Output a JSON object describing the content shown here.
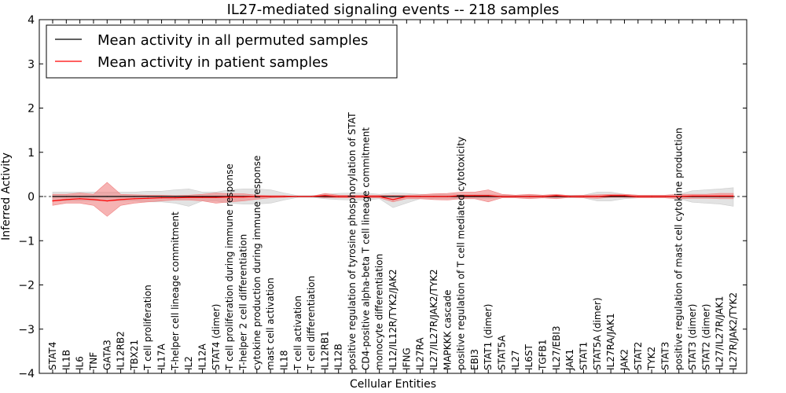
{
  "chart_data": {
    "type": "line",
    "title": "IL27-mediated signaling events -- 218 samples",
    "xlabel": "Cellular Entities",
    "ylabel": "Inferred Activity",
    "ylim": [
      -4,
      4
    ],
    "yticks": [
      "4",
      "3",
      "2",
      "1",
      "0",
      "−1",
      "−2",
      "−3",
      "−4"
    ],
    "ytick_values": [
      4,
      3,
      2,
      1,
      0,
      -1,
      -2,
      -3,
      -4
    ],
    "legend_position": "top-left",
    "categories": [
      "STAT4",
      "IL1B",
      "IL6",
      "TNF",
      "GATA3",
      "IL12RB2",
      "TBX21",
      "T cell proliferation",
      "IL17A",
      "T-helper cell lineage commitment",
      "IL2",
      "IL12A",
      "STAT4 (dimer)",
      "T cell proliferation during immune response",
      "T-helper 2 cell differentiation",
      "cytokine production during immune response",
      "mast cell activation",
      "IL18",
      "T cell activation",
      "T cell differentiation",
      "IL12RB1",
      "IL12B",
      "positive regulation of tyrosine phosphorylation of STAT",
      "CD4-positive alpha-beta T cell lineage commitment",
      "monocyte differentiation",
      "IL12/IL12R/TYK2/JAK2",
      "IFNG",
      "IL27RA",
      "IL27/IL27R/JAK2/TYK2",
      "MAPKKK cascade",
      "positive regulation of T cell mediated cytotoxicity",
      "EBI3",
      "STAT1 (dimer)",
      "STAT5A",
      "IL27",
      "IL6ST",
      "TGFB1",
      "IL27/EBI3",
      "JAK1",
      "STAT1",
      "STAT5A (dimer)",
      "IL27RA/JAK1",
      "JAK2",
      "STAT2",
      "TYK2",
      "STAT3",
      "positive regulation of mast cell cytokine production",
      "STAT3 (dimer)",
      "STAT2 (dimer)",
      "IL27/IL27R/JAK1",
      "IL27R/JAK2/TYK2"
    ],
    "series": [
      {
        "name": "Mean activity in all permuted samples",
        "color": "#000000",
        "band_color": "#cccccc",
        "values": [
          0,
          0,
          0,
          0,
          0,
          0,
          0,
          0,
          0,
          0,
          0,
          0,
          0,
          0,
          0,
          0,
          0,
          0,
          0,
          0,
          0,
          0,
          0,
          0,
          0,
          0,
          0,
          0,
          0,
          0,
          0,
          0,
          0,
          0,
          0,
          0,
          0,
          0,
          0,
          0,
          0,
          0,
          0,
          0,
          0,
          0,
          0,
          0,
          0,
          0,
          0
        ],
        "upper": [
          0.1,
          0.1,
          0.1,
          0.1,
          0.1,
          0.1,
          0.1,
          0.12,
          0.12,
          0.15,
          0.17,
          0.1,
          0.1,
          0.15,
          0.17,
          0.17,
          0.15,
          0.08,
          0.02,
          0.02,
          0.05,
          0.07,
          0.08,
          0.08,
          0.05,
          0.08,
          0.07,
          0.05,
          0.05,
          0.05,
          0.05,
          0.05,
          0.05,
          0.03,
          0.03,
          0.03,
          0.03,
          0.03,
          0.03,
          0.03,
          0.1,
          0.1,
          0.05,
          0.03,
          0.03,
          0.03,
          0.05,
          0.13,
          0.15,
          0.17,
          0.2
        ],
        "lower": [
          -0.1,
          -0.1,
          -0.1,
          -0.1,
          -0.1,
          -0.1,
          -0.1,
          -0.12,
          -0.12,
          -0.15,
          -0.22,
          -0.1,
          -0.1,
          -0.15,
          -0.17,
          -0.17,
          -0.15,
          -0.08,
          -0.02,
          -0.02,
          -0.05,
          -0.07,
          -0.08,
          -0.08,
          -0.05,
          -0.25,
          -0.15,
          -0.05,
          -0.05,
          -0.05,
          -0.05,
          -0.05,
          -0.05,
          -0.03,
          -0.03,
          -0.03,
          -0.03,
          -0.03,
          -0.03,
          -0.03,
          -0.1,
          -0.1,
          -0.05,
          -0.03,
          -0.03,
          -0.03,
          -0.05,
          -0.13,
          -0.15,
          -0.17,
          -0.22
        ]
      },
      {
        "name": "Mean activity in patient samples",
        "color": "#ff0000",
        "band_color": "#f08080",
        "values": [
          -0.1,
          -0.07,
          -0.05,
          -0.07,
          -0.1,
          -0.07,
          -0.05,
          -0.04,
          -0.03,
          -0.03,
          -0.02,
          -0.02,
          -0.02,
          -0.01,
          -0.01,
          0,
          0,
          0,
          0,
          0,
          0.02,
          0,
          0,
          0,
          0,
          -0.07,
          0,
          0,
          0,
          0,
          0.02,
          0.02,
          0.02,
          0,
          0,
          0,
          0,
          0.02,
          0,
          0,
          0,
          0.02,
          0.02,
          0,
          0,
          0,
          0,
          0.01,
          0.01,
          0.01,
          0.01
        ],
        "upper": [
          0.05,
          0.05,
          0.08,
          0.05,
          0.32,
          0.05,
          0.04,
          0.03,
          0.03,
          0.02,
          0.03,
          0.05,
          0.08,
          0.06,
          0.06,
          0.03,
          0.02,
          0.02,
          0,
          0,
          0.07,
          0.03,
          0.03,
          0.03,
          0.03,
          0.03,
          0.03,
          0.04,
          0.06,
          0.07,
          0.1,
          0.1,
          0.15,
          0.05,
          0.03,
          0.05,
          0.03,
          0.05,
          0.02,
          0.03,
          0.04,
          0.05,
          0.05,
          0.03,
          0.03,
          0.03,
          0.05,
          0.05,
          0.05,
          0.07,
          0.07
        ],
        "lower": [
          -0.2,
          -0.15,
          -0.15,
          -0.2,
          -0.45,
          -0.2,
          -0.15,
          -0.12,
          -0.1,
          -0.08,
          -0.08,
          -0.1,
          -0.15,
          -0.12,
          -0.1,
          -0.06,
          -0.03,
          -0.02,
          0,
          0,
          -0.03,
          -0.03,
          -0.03,
          -0.03,
          -0.03,
          -0.12,
          -0.05,
          -0.05,
          -0.07,
          -0.08,
          -0.05,
          -0.05,
          -0.12,
          -0.03,
          -0.03,
          -0.05,
          -0.03,
          -0.05,
          -0.02,
          -0.03,
          -0.04,
          -0.02,
          -0.02,
          -0.03,
          -0.03,
          -0.03,
          -0.05,
          -0.04,
          -0.04,
          -0.05,
          -0.05
        ]
      }
    ]
  }
}
